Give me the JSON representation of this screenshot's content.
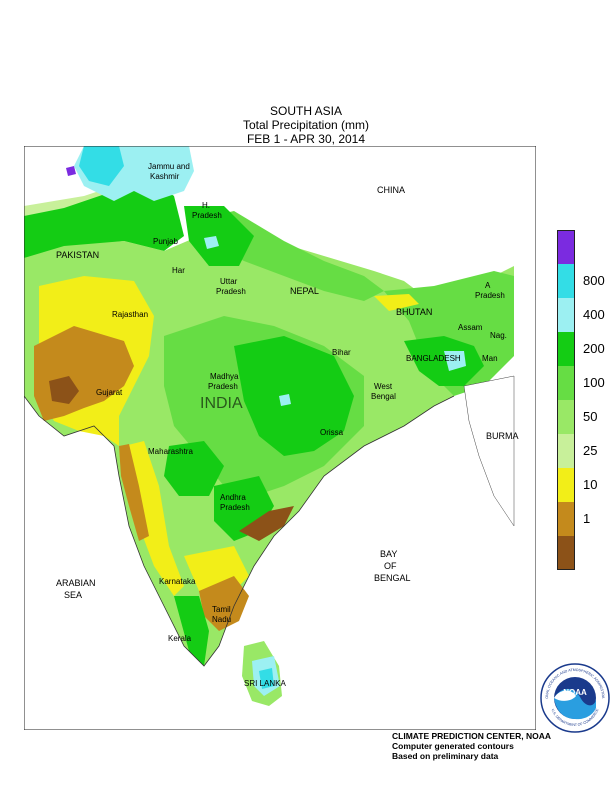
{
  "header": {
    "region": "SOUTH ASIA",
    "variable": "Total Precipitation (mm)",
    "period": "FEB  1 - APR 30, 2014"
  },
  "legend": {
    "levels": [
      {
        "label": "",
        "color": "#7b2be0"
      },
      {
        "label": "800",
        "color": "#33dde6"
      },
      {
        "label": "400",
        "color": "#9cf0f2"
      },
      {
        "label": "200",
        "color": "#14cc14"
      },
      {
        "label": "100",
        "color": "#66dd44"
      },
      {
        "label": "50",
        "color": "#99e866"
      },
      {
        "label": "25",
        "color": "#c8f09a"
      },
      {
        "label": "10",
        "color": "#f2ee18"
      },
      {
        "label": "1",
        "color": "#c48a1c"
      },
      {
        "label": "",
        "color": "#8c5218"
      }
    ]
  },
  "map": {
    "countries": {
      "china": "CHINA",
      "pakistan": "PAKISTAN",
      "nepal": "NEPAL",
      "bhutan": "BHUTAN",
      "india": "INDIA",
      "bangladesh": "BANGLADESH",
      "burma": "BURMA",
      "sri_lanka": "SRI LANKA"
    },
    "water": {
      "arabian_sea_1": "ARABIAN",
      "arabian_sea_2": "SEA",
      "bay_1": "BAY",
      "bay_2": "OF",
      "bay_3": "BENGAL"
    },
    "states": {
      "jk_1": "Jammu and",
      "jk_2": "Kashmir",
      "hp_1": "H.",
      "hp_2": "Pradesh",
      "punjab": "Punjab",
      "haryana": "Har",
      "up_1": "Uttar",
      "up_2": "Pradesh",
      "rajasthan": "Rajasthan",
      "gujarat": "Gujarat",
      "mp_1": "Madhya",
      "mp_2": "Pradesh",
      "bihar": "Bihar",
      "wb_1": "West",
      "wb_2": "Bengal",
      "orissa": "Orissa",
      "maharashtra": "Maharashtra",
      "ap_1": "Andhra",
      "ap_2": "Pradesh",
      "karnataka": "Karnataka",
      "tn_1": "Tamil",
      "tn_2": "Nadu",
      "kerala": "Kerala",
      "arunachal_1": "A",
      "arunachal_2": "Pradesh",
      "assam": "Assam",
      "nagaland": "Nag.",
      "manipur": "Man"
    }
  },
  "credits": {
    "line1": "CLIMATE PREDICTION CENTER, NOAA",
    "line2": "Computer generated contours",
    "line3": "Based on preliminary data"
  },
  "logo": {
    "center": "NOAA",
    "ring": "NATIONAL OCEANIC AND ATMOSPHERIC ADMINISTRATION",
    "ring_bottom": "U.S. DEPARTMENT OF COMMERCE"
  }
}
